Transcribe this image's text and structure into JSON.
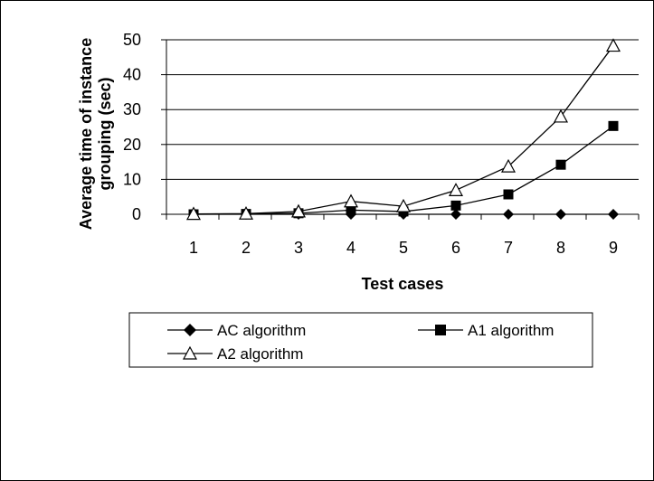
{
  "chart_data": {
    "type": "line",
    "title": "",
    "xlabel": "Test cases",
    "ylabel_lines": [
      "Average time of  instance",
      "grouping (sec)"
    ],
    "categories": [
      "1",
      "2",
      "3",
      "4",
      "5",
      "6",
      "7",
      "8",
      "9"
    ],
    "ylim": [
      0,
      50
    ],
    "yticks": [
      0,
      10,
      20,
      30,
      40,
      50
    ],
    "grid": true,
    "legend_position": "bottom",
    "series": [
      {
        "name": "AC algorithm",
        "marker": "diamond",
        "values": [
          0,
          0,
          0,
          0,
          0,
          0,
          0,
          0,
          0
        ]
      },
      {
        "name": "A1 algorithm",
        "marker": "square",
        "values": [
          0,
          0.1,
          0.3,
          1.2,
          0.8,
          2.5,
          5.7,
          14.2,
          25.3
        ]
      },
      {
        "name": "A2 algorithm",
        "marker": "triangle",
        "values": [
          0.1,
          0.2,
          0.8,
          3.7,
          2.3,
          6.9,
          13.7,
          28,
          48.3
        ]
      }
    ],
    "colors": {
      "line": "#000000",
      "grid": "#000000",
      "background": "#ffffff"
    }
  }
}
